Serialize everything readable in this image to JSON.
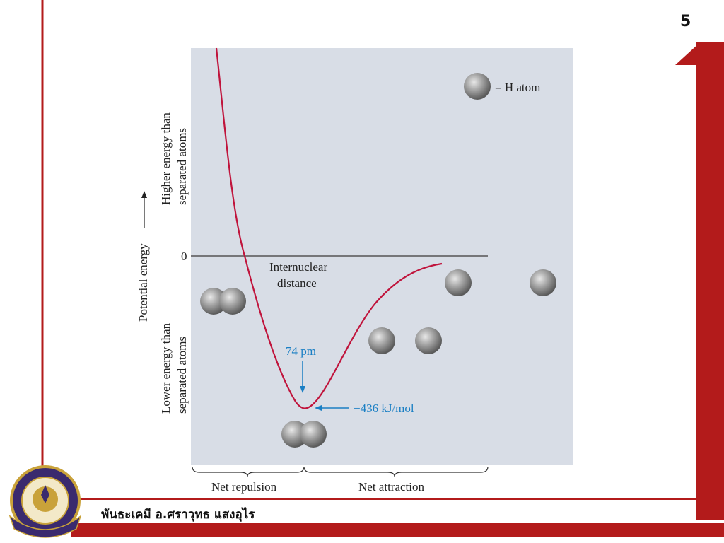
{
  "slide": {
    "number": "5"
  },
  "diagram": {
    "legend": "= H atom",
    "y_axis_label": "Potential energy",
    "y_upper_label": [
      "Higher energy than",
      "separated atoms"
    ],
    "y_lower_label": [
      "Lower energy than",
      "separated atoms"
    ],
    "zero_label": "0",
    "x_label": [
      "Internuclear",
      "distance"
    ],
    "bond_length_label": "74 pm",
    "bond_energy_label": "−436 kJ/mol",
    "region_left": "Net repulsion",
    "region_right": "Net attraction"
  },
  "footer": {
    "text": "พันธะเคมี อ.ศราวุทธ แสงอุไร"
  },
  "colors": {
    "accent_red": "#b31b1b",
    "panel_bg": "#d8dde6",
    "curve": "#c0143c",
    "annotation_blue": "#1a7fc4"
  }
}
